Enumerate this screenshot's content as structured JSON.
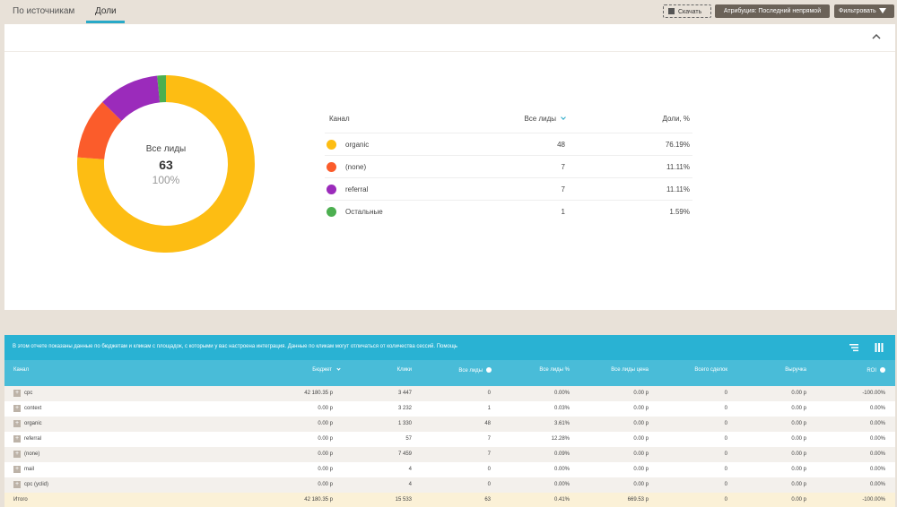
{
  "tabs": [
    {
      "label": "По источникам"
    },
    {
      "label": "Доли"
    }
  ],
  "toolbar": {
    "download_label": "Скачать",
    "attribution_label": "Атрибуция: Последний непрямой",
    "filter_label": "Фильтровать"
  },
  "donut": {
    "center_label": "Все лиды",
    "center_value": "63",
    "center_pct": "100%"
  },
  "chart_data": {
    "type": "pie",
    "title": "",
    "categories": [
      "organic",
      "(none)",
      "referral",
      "Остальные"
    ],
    "values": [
      48,
      7,
      7,
      1
    ],
    "colors": [
      "#fdbd13",
      "#fb5c2b",
      "#9b2bbb",
      "#4caf50"
    ]
  },
  "legend_table": {
    "headers": {
      "channel": "Канал",
      "leads": "Все лиды",
      "share": "Доли, %"
    },
    "rows": [
      {
        "name": "organic",
        "leads": "48",
        "share": "76.19%",
        "color": "#fdbd13"
      },
      {
        "name": "(none)",
        "leads": "7",
        "share": "11.11%",
        "color": "#fb5c2b"
      },
      {
        "name": "referral",
        "leads": "7",
        "share": "11.11%",
        "color": "#9b2bbb"
      },
      {
        "name": "Остальные",
        "leads": "1",
        "share": "1.59%",
        "color": "#4caf50"
      }
    ]
  },
  "info_bar": {
    "text": "В этом отчете показаны данные по бюджетам и кликам с площадок, с которыми у вас настроена интеграция. Данные по кликам могут отличаться от количества сессий. Помощь"
  },
  "table": {
    "headers": {
      "channel": "Канал",
      "budget": "Бюджет",
      "clicks": "Клики",
      "leads": "Все лиды",
      "leads_pct": "Все лиды %",
      "lead_price": "Все лиды цена",
      "deals": "Всего сделок",
      "revenue": "Выручка",
      "roi": "ROI"
    },
    "rows": [
      {
        "name": "cpc",
        "budget": "42 180.35 р",
        "clicks": "3 447",
        "leads": "0",
        "leads_pct": "0.00%",
        "lead_price": "0.00 р",
        "deals": "0",
        "revenue": "0.00 р",
        "roi": "-100.00%"
      },
      {
        "name": "context",
        "budget": "0.00 р",
        "clicks": "3 232",
        "leads": "1",
        "leads_pct": "0.03%",
        "lead_price": "0.00 р",
        "deals": "0",
        "revenue": "0.00 р",
        "roi": "0.00%"
      },
      {
        "name": "organic",
        "budget": "0.00 р",
        "clicks": "1 330",
        "leads": "48",
        "leads_pct": "3.61%",
        "lead_price": "0.00 р",
        "deals": "0",
        "revenue": "0.00 р",
        "roi": "0.00%"
      },
      {
        "name": "referral",
        "budget": "0.00 р",
        "clicks": "57",
        "leads": "7",
        "leads_pct": "12.28%",
        "lead_price": "0.00 р",
        "deals": "0",
        "revenue": "0.00 р",
        "roi": "0.00%"
      },
      {
        "name": "(none)",
        "budget": "0.00 р",
        "clicks": "7 459",
        "leads": "7",
        "leads_pct": "0.09%",
        "lead_price": "0.00 р",
        "deals": "0",
        "revenue": "0.00 р",
        "roi": "0.00%"
      },
      {
        "name": "mail",
        "budget": "0.00 р",
        "clicks": "4",
        "leads": "0",
        "leads_pct": "0.00%",
        "lead_price": "0.00 р",
        "deals": "0",
        "revenue": "0.00 р",
        "roi": "0.00%"
      },
      {
        "name": "cpc (yclid)",
        "budget": "0.00 р",
        "clicks": "4",
        "leads": "0",
        "leads_pct": "0.00%",
        "lead_price": "0.00 р",
        "deals": "0",
        "revenue": "0.00 р",
        "roi": "0.00%"
      }
    ],
    "total": {
      "name": "Итого",
      "budget": "42 180.35 р",
      "clicks": "15 533",
      "leads": "63",
      "leads_pct": "0.41%",
      "lead_price": "669.53 р",
      "deals": "0",
      "revenue": "0.00 р",
      "roi": "-100.00%"
    }
  }
}
